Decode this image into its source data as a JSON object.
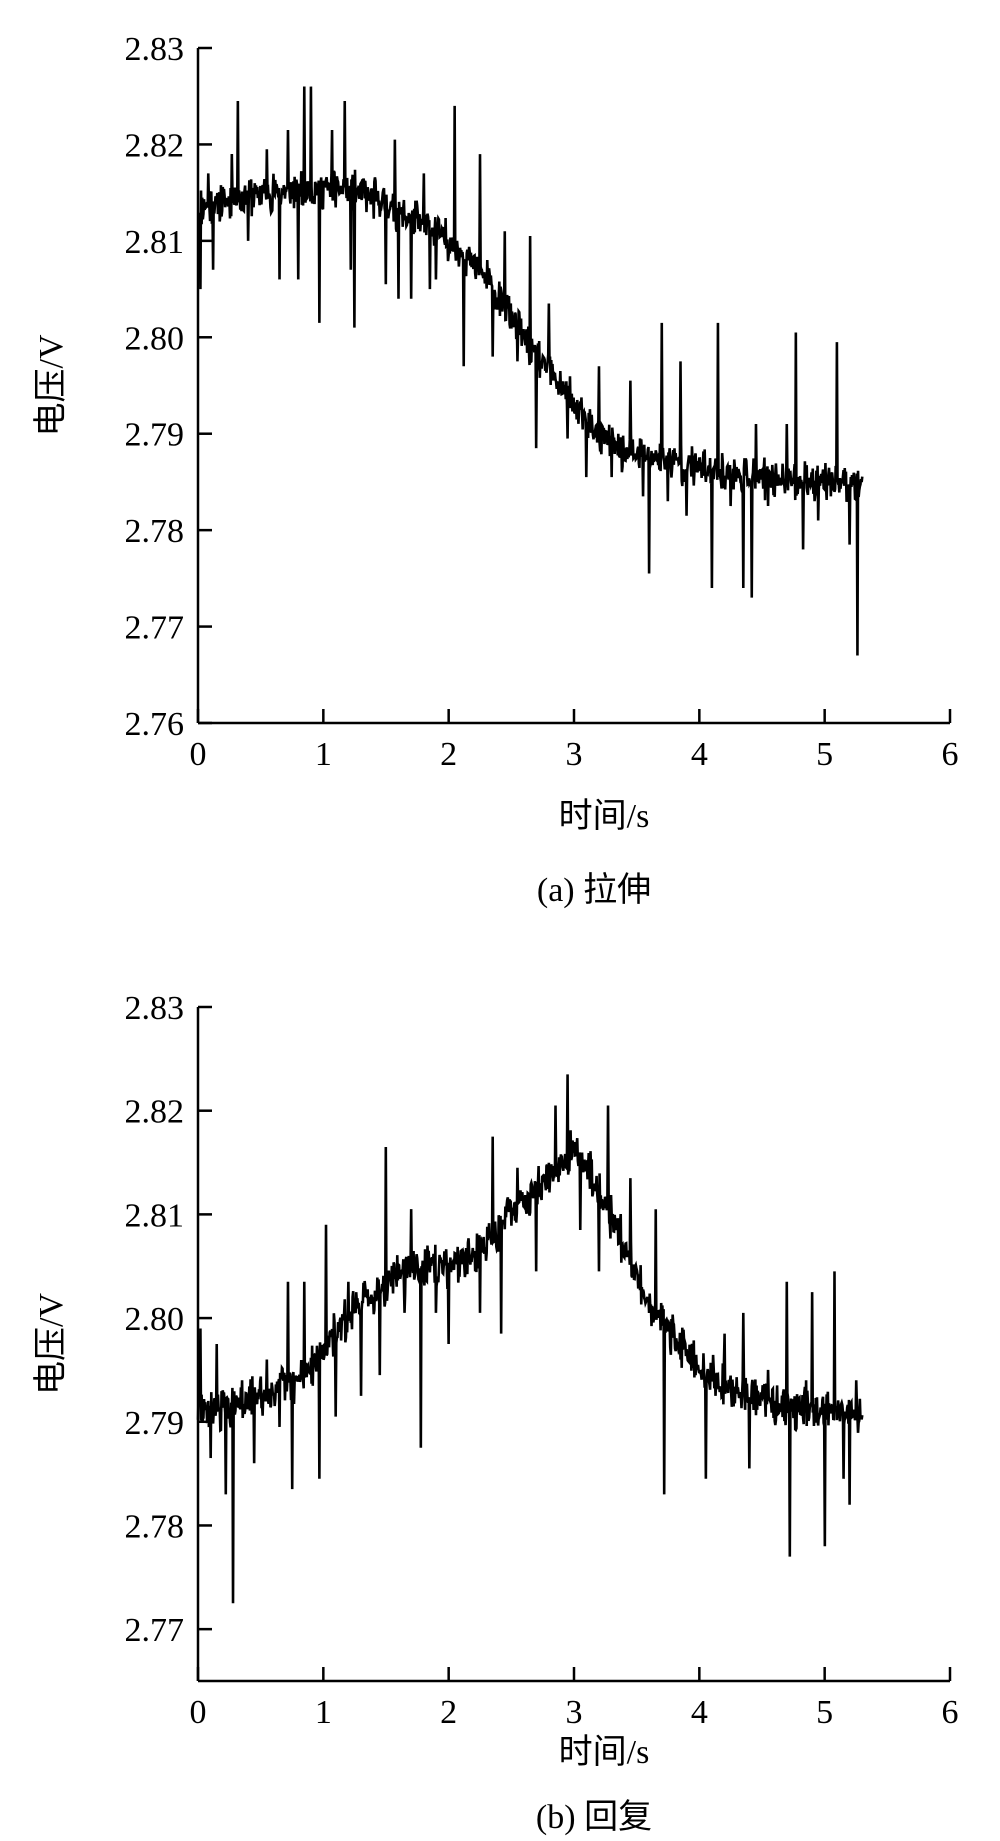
{
  "chart_data": [
    {
      "type": "line",
      "caption": "(a) 拉伸",
      "xlabel": "时间/s",
      "ylabel": "电压/V",
      "xlim": [
        0,
        6
      ],
      "ylim": [
        2.76,
        2.83
      ],
      "xticks": [
        "0",
        "1",
        "2",
        "3",
        "4",
        "5",
        "6"
      ],
      "yticks": [
        "2.76",
        "2.77",
        "2.78",
        "2.79",
        "2.80",
        "2.81",
        "2.82",
        "2.83"
      ],
      "x_end": 5.3,
      "trend": {
        "x": [
          0,
          0.5,
          1.0,
          1.3,
          1.6,
          1.9,
          2.1,
          2.3,
          2.5,
          2.7,
          2.9,
          3.1,
          3.4,
          3.7,
          4.0,
          4.4,
          4.8,
          5.3
        ],
        "y": [
          2.8135,
          2.815,
          2.8155,
          2.815,
          2.813,
          2.811,
          2.809,
          2.806,
          2.802,
          2.798,
          2.795,
          2.791,
          2.788,
          2.7875,
          2.7865,
          2.7855,
          2.7852,
          2.785
        ]
      },
      "spikes": [
        {
          "x": 0.02,
          "y": 2.805
        },
        {
          "x": 0.08,
          "y": 2.817
        },
        {
          "x": 0.12,
          "y": 2.807
        },
        {
          "x": 0.27,
          "y": 2.819
        },
        {
          "x": 0.32,
          "y": 2.8245
        },
        {
          "x": 0.4,
          "y": 2.81
        },
        {
          "x": 0.55,
          "y": 2.8195
        },
        {
          "x": 0.65,
          "y": 2.806
        },
        {
          "x": 0.72,
          "y": 2.8215
        },
        {
          "x": 0.8,
          "y": 2.806
        },
        {
          "x": 0.85,
          "y": 2.826
        },
        {
          "x": 0.9,
          "y": 2.826
        },
        {
          "x": 0.97,
          "y": 2.8015
        },
        {
          "x": 1.07,
          "y": 2.8215
        },
        {
          "x": 1.17,
          "y": 2.8245
        },
        {
          "x": 1.22,
          "y": 2.807
        },
        {
          "x": 1.25,
          "y": 2.801
        },
        {
          "x": 1.45,
          "y": 2.8125
        },
        {
          "x": 1.5,
          "y": 2.8055
        },
        {
          "x": 1.57,
          "y": 2.8205
        },
        {
          "x": 1.6,
          "y": 2.804
        },
        {
          "x": 1.7,
          "y": 2.804
        },
        {
          "x": 1.8,
          "y": 2.817
        },
        {
          "x": 1.85,
          "y": 2.805
        },
        {
          "x": 1.9,
          "y": 2.806
        },
        {
          "x": 2.0,
          "y": 2.8085
        },
        {
          "x": 2.05,
          "y": 2.824
        },
        {
          "x": 2.12,
          "y": 2.797
        },
        {
          "x": 2.25,
          "y": 2.819
        },
        {
          "x": 2.35,
          "y": 2.798
        },
        {
          "x": 2.45,
          "y": 2.811
        },
        {
          "x": 2.55,
          "y": 2.7975
        },
        {
          "x": 2.65,
          "y": 2.8105
        },
        {
          "x": 2.7,
          "y": 2.7885
        },
        {
          "x": 2.8,
          "y": 2.8035
        },
        {
          "x": 2.95,
          "y": 2.7895
        },
        {
          "x": 3.1,
          "y": 2.7855
        },
        {
          "x": 3.2,
          "y": 2.797
        },
        {
          "x": 3.3,
          "y": 2.7855
        },
        {
          "x": 3.4,
          "y": 2.7885
        },
        {
          "x": 3.45,
          "y": 2.7955
        },
        {
          "x": 3.55,
          "y": 2.7835
        },
        {
          "x": 3.6,
          "y": 2.7755
        },
        {
          "x": 3.7,
          "y": 2.8015
        },
        {
          "x": 3.75,
          "y": 2.783
        },
        {
          "x": 3.85,
          "y": 2.7975
        },
        {
          "x": 3.9,
          "y": 2.7815
        },
        {
          "x": 4.05,
          "y": 2.785
        },
        {
          "x": 4.1,
          "y": 2.774
        },
        {
          "x": 4.15,
          "y": 2.8015
        },
        {
          "x": 4.25,
          "y": 2.7825
        },
        {
          "x": 4.35,
          "y": 2.774
        },
        {
          "x": 4.42,
          "y": 2.773
        },
        {
          "x": 4.45,
          "y": 2.791
        },
        {
          "x": 4.55,
          "y": 2.7825
        },
        {
          "x": 4.7,
          "y": 2.791
        },
        {
          "x": 4.77,
          "y": 2.8005
        },
        {
          "x": 4.83,
          "y": 2.778
        },
        {
          "x": 4.95,
          "y": 2.781
        },
        {
          "x": 5.05,
          "y": 2.7835
        },
        {
          "x": 5.1,
          "y": 2.7995
        },
        {
          "x": 5.2,
          "y": 2.7785
        },
        {
          "x": 5.26,
          "y": 2.767
        }
      ]
    },
    {
      "type": "line",
      "caption": "(b) 回复",
      "xlabel": "时间/s",
      "ylabel": "电压/V",
      "xlim": [
        0,
        6
      ],
      "ylim": [
        2.765,
        2.83
      ],
      "xticks": [
        "0",
        "1",
        "2",
        "3",
        "4",
        "5",
        "6"
      ],
      "yticks": [
        "2.77",
        "2.78",
        "2.79",
        "2.80",
        "2.81",
        "2.82",
        "2.83"
      ],
      "x_end": 5.3,
      "trend": {
        "x": [
          0,
          0.4,
          0.8,
          1.0,
          1.2,
          1.4,
          1.6,
          1.8,
          2.0,
          2.2,
          2.4,
          2.6,
          2.8,
          3.0,
          3.2,
          3.4,
          3.6,
          3.8,
          4.0,
          4.2,
          4.5,
          4.8,
          5.3
        ],
        "y": [
          2.791,
          2.792,
          2.794,
          2.797,
          2.8,
          2.8025,
          2.8045,
          2.805,
          2.805,
          2.806,
          2.8085,
          2.8115,
          2.8135,
          2.8165,
          2.8125,
          2.807,
          2.8015,
          2.798,
          2.795,
          2.7935,
          2.792,
          2.7915,
          2.791
        ]
      },
      "spikes": [
        {
          "x": 0.02,
          "y": 2.799
        },
        {
          "x": 0.1,
          "y": 2.7865
        },
        {
          "x": 0.15,
          "y": 2.7975
        },
        {
          "x": 0.22,
          "y": 2.783
        },
        {
          "x": 0.28,
          "y": 2.7725
        },
        {
          "x": 0.35,
          "y": 2.794
        },
        {
          "x": 0.45,
          "y": 2.786
        },
        {
          "x": 0.55,
          "y": 2.796
        },
        {
          "x": 0.65,
          "y": 2.7895
        },
        {
          "x": 0.72,
          "y": 2.8035
        },
        {
          "x": 0.75,
          "y": 2.7835
        },
        {
          "x": 0.85,
          "y": 2.8035
        },
        {
          "x": 0.97,
          "y": 2.7845
        },
        {
          "x": 1.02,
          "y": 2.809
        },
        {
          "x": 1.1,
          "y": 2.7905
        },
        {
          "x": 1.2,
          "y": 2.8035
        },
        {
          "x": 1.3,
          "y": 2.7925
        },
        {
          "x": 1.45,
          "y": 2.7945
        },
        {
          "x": 1.5,
          "y": 2.8165
        },
        {
          "x": 1.65,
          "y": 2.8005
        },
        {
          "x": 1.7,
          "y": 2.8105
        },
        {
          "x": 1.78,
          "y": 2.7875
        },
        {
          "x": 1.9,
          "y": 2.8005
        },
        {
          "x": 2.0,
          "y": 2.7975
        },
        {
          "x": 2.1,
          "y": 2.8065
        },
        {
          "x": 2.25,
          "y": 2.8005
        },
        {
          "x": 2.35,
          "y": 2.8175
        },
        {
          "x": 2.42,
          "y": 2.7985
        },
        {
          "x": 2.55,
          "y": 2.8145
        },
        {
          "x": 2.7,
          "y": 2.8045
        },
        {
          "x": 2.85,
          "y": 2.8205
        },
        {
          "x": 2.95,
          "y": 2.8235
        },
        {
          "x": 3.05,
          "y": 2.8085
        },
        {
          "x": 3.2,
          "y": 2.8045
        },
        {
          "x": 3.27,
          "y": 2.8205
        },
        {
          "x": 3.45,
          "y": 2.8135
        },
        {
          "x": 3.6,
          "y": 2.8005
        },
        {
          "x": 3.65,
          "y": 2.8105
        },
        {
          "x": 3.72,
          "y": 2.783
        },
        {
          "x": 3.85,
          "y": 2.796
        },
        {
          "x": 4.05,
          "y": 2.7845
        },
        {
          "x": 4.2,
          "y": 2.7985
        },
        {
          "x": 4.35,
          "y": 2.8005
        },
        {
          "x": 4.4,
          "y": 2.7855
        },
        {
          "x": 4.55,
          "y": 2.795
        },
        {
          "x": 4.7,
          "y": 2.8035
        },
        {
          "x": 4.72,
          "y": 2.777
        },
        {
          "x": 4.85,
          "y": 2.794
        },
        {
          "x": 4.9,
          "y": 2.8025
        },
        {
          "x": 5.0,
          "y": 2.778
        },
        {
          "x": 5.08,
          "y": 2.8045
        },
        {
          "x": 5.15,
          "y": 2.7845
        },
        {
          "x": 5.2,
          "y": 2.782
        },
        {
          "x": 5.25,
          "y": 2.794
        }
      ]
    }
  ]
}
